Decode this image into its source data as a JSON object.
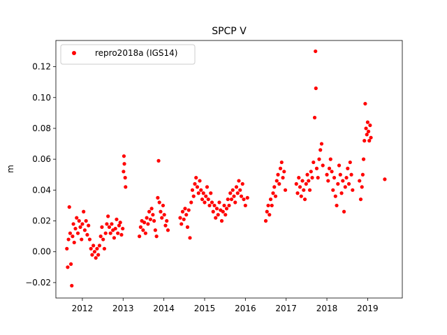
{
  "chart_data": {
    "type": "scatter",
    "title": "SPCP V",
    "xlabel": "",
    "ylabel": "m",
    "xlim": [
      2011.35,
      2019.85
    ],
    "ylim": [
      -0.03,
      0.137
    ],
    "x_ticks": [
      2012,
      2013,
      2014,
      2015,
      2016,
      2017,
      2018,
      2019
    ],
    "x_tick_labels": [
      "2012",
      "2013",
      "2014",
      "2015",
      "2016",
      "2017",
      "2018",
      "2019"
    ],
    "y_ticks": [
      -0.02,
      0.0,
      0.02,
      0.04,
      0.06,
      0.08,
      0.1,
      0.12
    ],
    "y_tick_labels": [
      "−0.02",
      "0.00",
      "0.02",
      "0.04",
      "0.06",
      "0.08",
      "0.10",
      "0.12"
    ],
    "legend": {
      "position": "top-left",
      "entries": [
        "repro2018a (IGS14)"
      ]
    },
    "grid": false,
    "marker_color": "#ff0000",
    "series": [
      {
        "name": "repro2018a (IGS14)",
        "color": "#ff0000",
        "points": [
          [
            2011.62,
            0.002
          ],
          [
            2011.64,
            -0.01
          ],
          [
            2011.66,
            0.008
          ],
          [
            2011.68,
            0.029
          ],
          [
            2011.7,
            0.012
          ],
          [
            2011.72,
            -0.008
          ],
          [
            2011.74,
            -0.022
          ],
          [
            2011.76,
            0.01
          ],
          [
            2011.78,
            0.018
          ],
          [
            2011.8,
            0.006
          ],
          [
            2011.83,
            0.015
          ],
          [
            2011.86,
            0.022
          ],
          [
            2011.89,
            0.012
          ],
          [
            2011.92,
            0.02
          ],
          [
            2011.95,
            0.016
          ],
          [
            2011.98,
            0.008
          ],
          [
            2012.0,
            0.018
          ],
          [
            2012.03,
            0.026
          ],
          [
            2012.06,
            0.014
          ],
          [
            2012.09,
            0.02
          ],
          [
            2012.12,
            0.011
          ],
          [
            2012.15,
            0.017
          ],
          [
            2012.18,
            0.008
          ],
          [
            2012.21,
            0.002
          ],
          [
            2012.24,
            -0.002
          ],
          [
            2012.27,
            0.004
          ],
          [
            2012.3,
            0.0
          ],
          [
            2012.33,
            -0.004
          ],
          [
            2012.36,
            0.002
          ],
          [
            2012.39,
            -0.002
          ],
          [
            2012.42,
            0.004
          ],
          [
            2012.45,
            0.01
          ],
          [
            2012.48,
            0.016
          ],
          [
            2012.51,
            0.008
          ],
          [
            2012.54,
            0.002
          ],
          [
            2012.57,
            0.012
          ],
          [
            2012.6,
            0.018
          ],
          [
            2012.63,
            0.023
          ],
          [
            2012.66,
            0.016
          ],
          [
            2012.69,
            0.012
          ],
          [
            2012.72,
            0.018
          ],
          [
            2012.75,
            0.014
          ],
          [
            2012.78,
            0.009
          ],
          [
            2012.81,
            0.015
          ],
          [
            2012.84,
            0.021
          ],
          [
            2012.87,
            0.012
          ],
          [
            2012.9,
            0.017
          ],
          [
            2012.93,
            0.019
          ],
          [
            2012.96,
            0.011
          ],
          [
            2012.99,
            0.015
          ],
          [
            2013.01,
            0.052
          ],
          [
            2013.02,
            0.062
          ],
          [
            2013.03,
            0.057
          ],
          [
            2013.05,
            0.048
          ],
          [
            2013.06,
            0.042
          ],
          [
            2013.4,
            0.01
          ],
          [
            2013.43,
            0.016
          ],
          [
            2013.46,
            0.02
          ],
          [
            2013.49,
            0.014
          ],
          [
            2013.52,
            0.019
          ],
          [
            2013.55,
            0.012
          ],
          [
            2013.58,
            0.022
          ],
          [
            2013.61,
            0.018
          ],
          [
            2013.64,
            0.026
          ],
          [
            2013.67,
            0.021
          ],
          [
            2013.7,
            0.028
          ],
          [
            2013.73,
            0.024
          ],
          [
            2013.76,
            0.02
          ],
          [
            2013.79,
            0.014
          ],
          [
            2013.82,
            0.01
          ],
          [
            2013.85,
            0.035
          ],
          [
            2013.87,
            0.059
          ],
          [
            2013.89,
            0.032
          ],
          [
            2013.92,
            0.026
          ],
          [
            2013.95,
            0.022
          ],
          [
            2013.98,
            0.03
          ],
          [
            2014.01,
            0.024
          ],
          [
            2014.04,
            0.017
          ],
          [
            2014.07,
            0.02
          ],
          [
            2014.1,
            0.014
          ],
          [
            2014.4,
            0.022
          ],
          [
            2014.43,
            0.018
          ],
          [
            2014.46,
            0.026
          ],
          [
            2014.49,
            0.021
          ],
          [
            2014.52,
            0.028
          ],
          [
            2014.55,
            0.024
          ],
          [
            2014.58,
            0.016
          ],
          [
            2014.61,
            0.027
          ],
          [
            2014.64,
            0.009
          ],
          [
            2014.67,
            0.032
          ],
          [
            2014.7,
            0.04
          ],
          [
            2014.73,
            0.036
          ],
          [
            2014.76,
            0.044
          ],
          [
            2014.79,
            0.048
          ],
          [
            2014.82,
            0.042
          ],
          [
            2014.85,
            0.038
          ],
          [
            2014.88,
            0.046
          ],
          [
            2014.91,
            0.04
          ],
          [
            2014.94,
            0.034
          ],
          [
            2014.97,
            0.038
          ],
          [
            2015.0,
            0.032
          ],
          [
            2015.03,
            0.036
          ],
          [
            2015.06,
            0.042
          ],
          [
            2015.09,
            0.034
          ],
          [
            2015.12,
            0.03
          ],
          [
            2015.15,
            0.038
          ],
          [
            2015.18,
            0.032
          ],
          [
            2015.21,
            0.026
          ],
          [
            2015.24,
            0.03
          ],
          [
            2015.27,
            0.022
          ],
          [
            2015.3,
            0.028
          ],
          [
            2015.33,
            0.024
          ],
          [
            2015.36,
            0.032
          ],
          [
            2015.39,
            0.027
          ],
          [
            2015.42,
            0.02
          ],
          [
            2015.45,
            0.026
          ],
          [
            2015.48,
            0.03
          ],
          [
            2015.51,
            0.024
          ],
          [
            2015.54,
            0.028
          ],
          [
            2015.57,
            0.034
          ],
          [
            2015.6,
            0.03
          ],
          [
            2015.63,
            0.038
          ],
          [
            2015.66,
            0.034
          ],
          [
            2015.69,
            0.04
          ],
          [
            2015.72,
            0.036
          ],
          [
            2015.75,
            0.032
          ],
          [
            2015.78,
            0.042
          ],
          [
            2015.81,
            0.038
          ],
          [
            2015.84,
            0.046
          ],
          [
            2015.87,
            0.04
          ],
          [
            2015.9,
            0.036
          ],
          [
            2015.93,
            0.044
          ],
          [
            2015.96,
            0.034
          ],
          [
            2016.0,
            0.03
          ],
          [
            2016.05,
            0.035
          ],
          [
            2016.5,
            0.02
          ],
          [
            2016.53,
            0.026
          ],
          [
            2016.56,
            0.03
          ],
          [
            2016.59,
            0.024
          ],
          [
            2016.62,
            0.034
          ],
          [
            2016.65,
            0.03
          ],
          [
            2016.68,
            0.038
          ],
          [
            2016.71,
            0.042
          ],
          [
            2016.74,
            0.036
          ],
          [
            2016.77,
            0.046
          ],
          [
            2016.8,
            0.05
          ],
          [
            2016.83,
            0.044
          ],
          [
            2016.86,
            0.054
          ],
          [
            2016.89,
            0.058
          ],
          [
            2016.92,
            0.048
          ],
          [
            2016.95,
            0.052
          ],
          [
            2016.98,
            0.04
          ],
          [
            2017.25,
            0.044
          ],
          [
            2017.28,
            0.038
          ],
          [
            2017.31,
            0.048
          ],
          [
            2017.34,
            0.042
          ],
          [
            2017.37,
            0.036
          ],
          [
            2017.4,
            0.046
          ],
          [
            2017.43,
            0.04
          ],
          [
            2017.46,
            0.034
          ],
          [
            2017.49,
            0.044
          ],
          [
            2017.52,
            0.05
          ],
          [
            2017.55,
            0.046
          ],
          [
            2017.58,
            0.04
          ],
          [
            2017.61,
            0.052
          ],
          [
            2017.64,
            0.048
          ],
          [
            2017.67,
            0.058
          ],
          [
            2017.7,
            0.087
          ],
          [
            2017.72,
            0.13
          ],
          [
            2017.73,
            0.106
          ],
          [
            2017.75,
            0.054
          ],
          [
            2017.78,
            0.048
          ],
          [
            2017.81,
            0.06
          ],
          [
            2017.84,
            0.066
          ],
          [
            2017.87,
            0.07
          ],
          [
            2017.9,
            0.056
          ],
          [
            2018.0,
            0.05
          ],
          [
            2018.03,
            0.046
          ],
          [
            2018.06,
            0.054
          ],
          [
            2018.09,
            0.06
          ],
          [
            2018.12,
            0.052
          ],
          [
            2018.15,
            0.04
          ],
          [
            2018.18,
            0.048
          ],
          [
            2018.21,
            0.036
          ],
          [
            2018.24,
            0.03
          ],
          [
            2018.27,
            0.044
          ],
          [
            2018.3,
            0.056
          ],
          [
            2018.33,
            0.05
          ],
          [
            2018.36,
            0.038
          ],
          [
            2018.39,
            0.046
          ],
          [
            2018.42,
            0.026
          ],
          [
            2018.45,
            0.042
          ],
          [
            2018.48,
            0.048
          ],
          [
            2018.51,
            0.054
          ],
          [
            2018.54,
            0.044
          ],
          [
            2018.57,
            0.058
          ],
          [
            2018.6,
            0.05
          ],
          [
            2018.63,
            0.04
          ],
          [
            2018.8,
            0.046
          ],
          [
            2018.83,
            0.034
          ],
          [
            2018.86,
            0.042
          ],
          [
            2018.88,
            0.05
          ],
          [
            2018.9,
            0.06
          ],
          [
            2018.92,
            0.072
          ],
          [
            2018.94,
            0.096
          ],
          [
            2018.96,
            0.08
          ],
          [
            2018.98,
            0.076
          ],
          [
            2019.0,
            0.084
          ],
          [
            2019.02,
            0.078
          ],
          [
            2019.04,
            0.072
          ],
          [
            2019.06,
            0.082
          ],
          [
            2019.08,
            0.074
          ],
          [
            2019.42,
            0.047
          ]
        ]
      }
    ]
  }
}
